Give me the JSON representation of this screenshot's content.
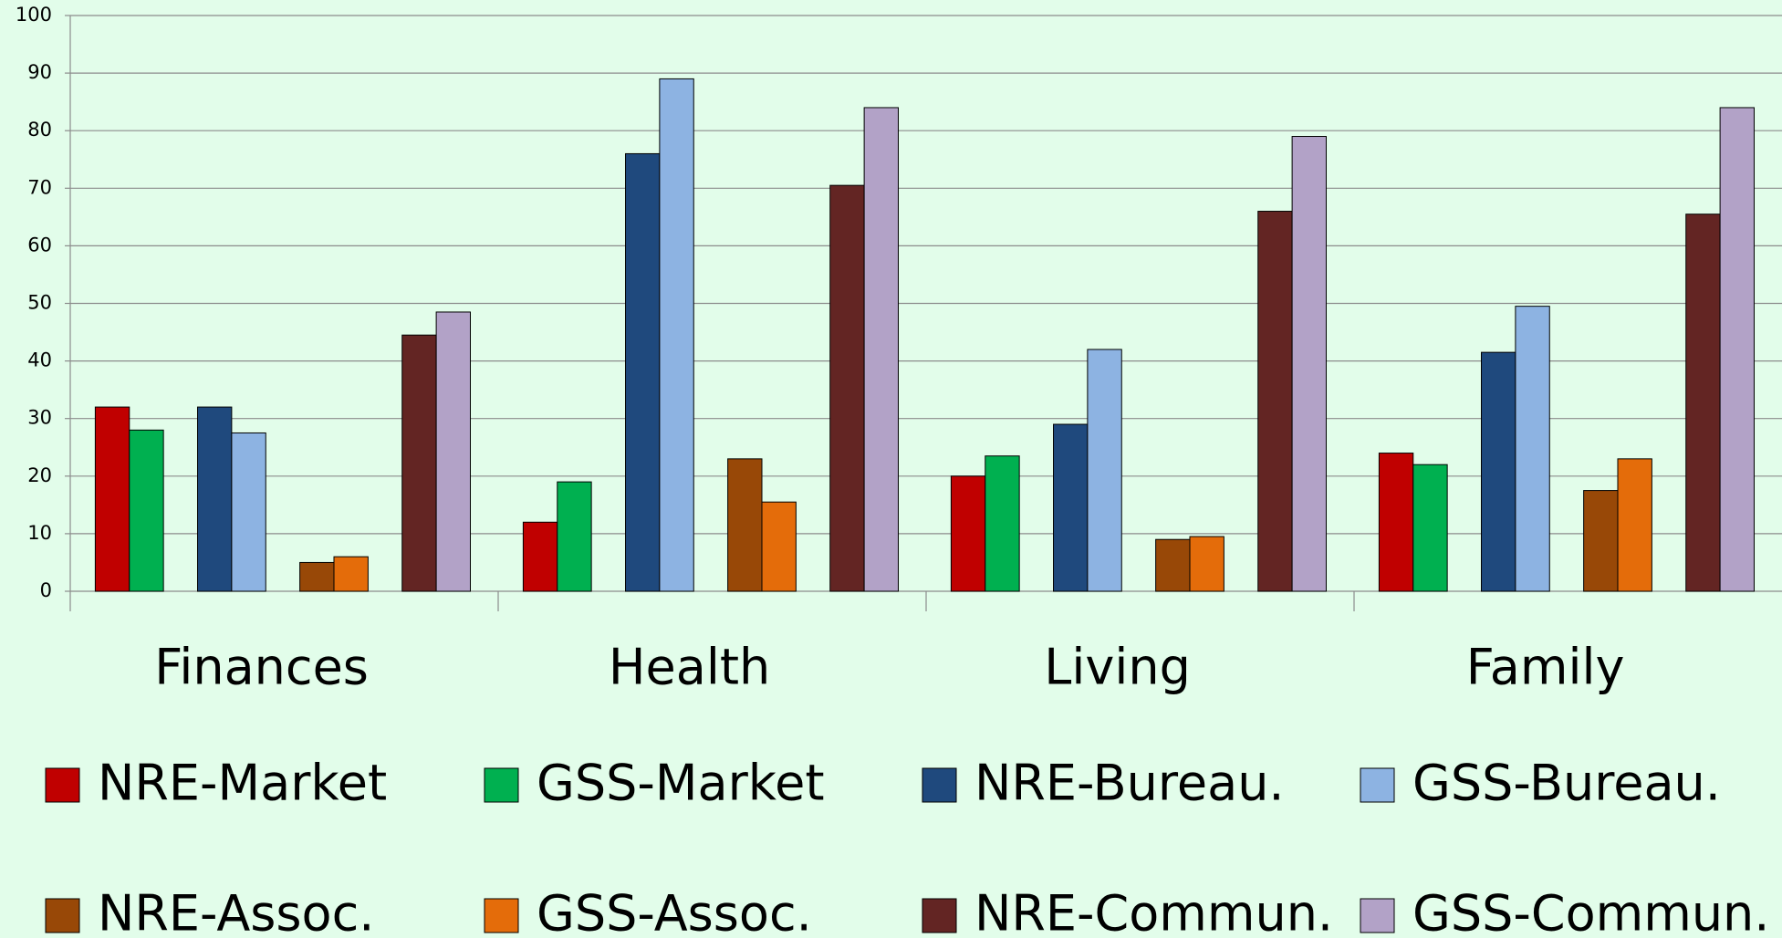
{
  "chart_data": {
    "type": "bar",
    "categories": [
      "Finances",
      "Health",
      "Living",
      "Family"
    ],
    "series": [
      {
        "name": "NRE-Market",
        "color": "#c00000",
        "values": [
          32,
          12,
          20,
          24
        ]
      },
      {
        "name": "GSS-Market",
        "color": "#00b050",
        "values": [
          28,
          19,
          23.5,
          22
        ]
      },
      {
        "name": "NRE-Bureau.",
        "color": "#1f497d",
        "values": [
          32,
          76,
          29,
          41.5
        ]
      },
      {
        "name": "GSS-Bureau.",
        "color": "#8db3e2",
        "values": [
          27.5,
          89,
          42,
          49.5
        ]
      },
      {
        "name": "NRE-Assoc.",
        "color": "#984807",
        "values": [
          5,
          23,
          9,
          17.5
        ]
      },
      {
        "name": "GSS-Assoc.",
        "color": "#e46c0a",
        "values": [
          6,
          15.5,
          9.5,
          23
        ]
      },
      {
        "name": "NRE-Commun.",
        "color": "#632523",
        "values": [
          44.5,
          70.5,
          66,
          65.5
        ]
      },
      {
        "name": "GSS-Commun.",
        "color": "#b2a2c7",
        "values": [
          48.5,
          84,
          79,
          84
        ]
      }
    ],
    "ylim": [
      0,
      100
    ],
    "yticks": [
      0,
      10,
      20,
      30,
      40,
      50,
      60,
      70,
      80,
      90,
      100
    ],
    "grid": true
  }
}
